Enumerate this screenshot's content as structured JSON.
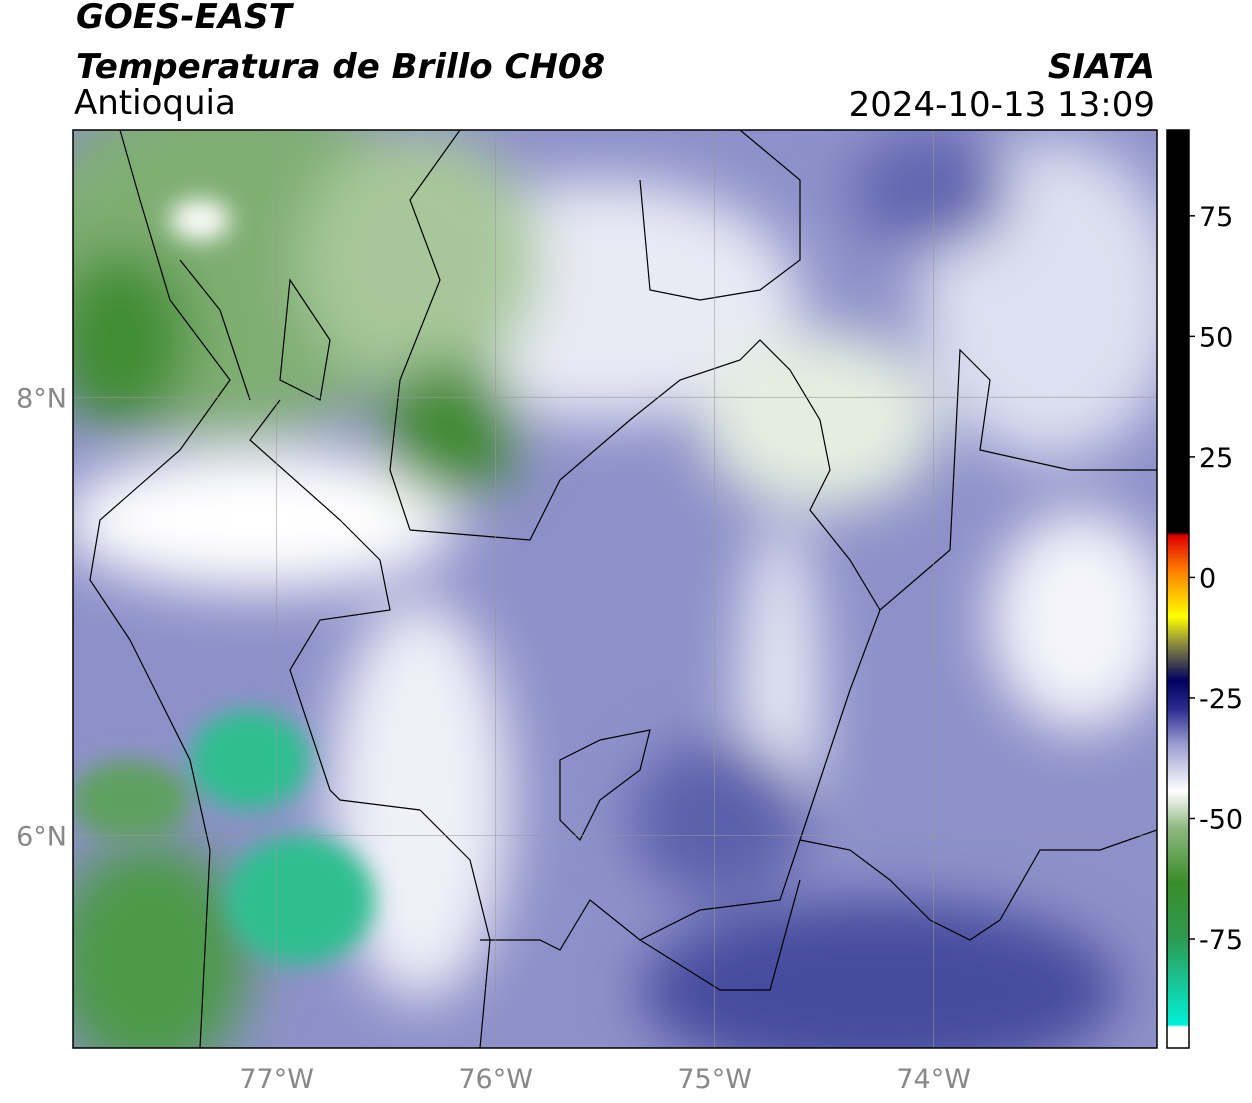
{
  "header": {
    "title": "GOES-EAST",
    "subtitle": "Temperatura de Brillo CH08",
    "region": "Antioquia",
    "source": "SIATA",
    "datetime": "2024-10-13 13:09"
  },
  "map": {
    "xlim": [
      -77.93,
      -72.98
    ],
    "ylim": [
      5.03,
      9.22
    ],
    "xticks": [
      {
        "value": -77,
        "label": "77°W"
      },
      {
        "value": -76,
        "label": "76°W"
      },
      {
        "value": -75,
        "label": "75°W"
      },
      {
        "value": -74,
        "label": "74°W"
      }
    ],
    "yticks": [
      {
        "value": 8,
        "label": "8°N"
      },
      {
        "value": 6,
        "label": "6°N"
      }
    ]
  },
  "colorbar": {
    "lim": [
      -97.6,
      92.8
    ],
    "ticks": [
      75,
      50,
      25,
      0,
      -25,
      -50,
      -75
    ]
  }
}
